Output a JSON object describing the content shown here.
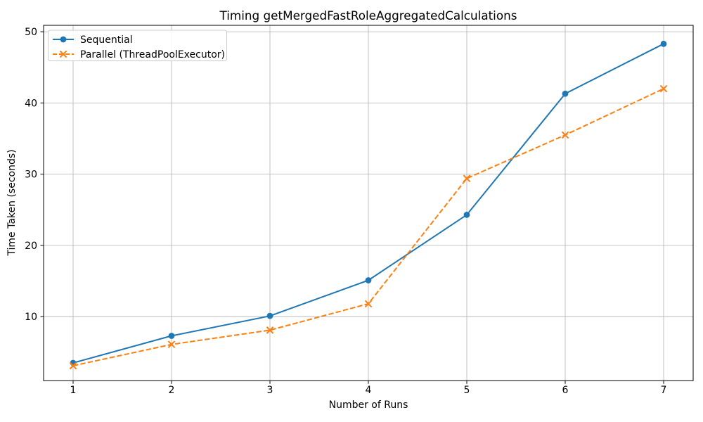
{
  "chart_data": {
    "type": "line",
    "title": "Timing getMergedFastRoleAggregatedCalculations",
    "xlabel": "Number of Runs",
    "ylabel": "Time Taken (seconds)",
    "x": [
      1,
      2,
      3,
      4,
      5,
      6,
      7
    ],
    "series": [
      {
        "name": "Sequential",
        "values": [
          3.5,
          7.3,
          10.1,
          15.1,
          24.3,
          41.3,
          48.3
        ],
        "color": "#1f77b4",
        "line_style": "solid",
        "marker": "circle"
      },
      {
        "name": "Parallel (ThreadPoolExecutor)",
        "values": [
          3.1,
          6.1,
          8.1,
          11.8,
          29.4,
          35.5,
          42.0
        ],
        "color": "#ff7f0e",
        "line_style": "dashed",
        "marker": "x"
      }
    ],
    "xticks": [
      1,
      2,
      3,
      4,
      5,
      6,
      7
    ],
    "yticks": [
      10,
      20,
      30,
      40,
      50
    ],
    "xlim": [
      0.7,
      7.3
    ],
    "ylim": [
      1.0,
      50.9
    ],
    "grid": true,
    "grid_color": "#b0b0b0",
    "axis_color": "#000000",
    "legend_position": "upper-left",
    "legend_border_color": "#cccccc",
    "background": "#ffffff"
  }
}
